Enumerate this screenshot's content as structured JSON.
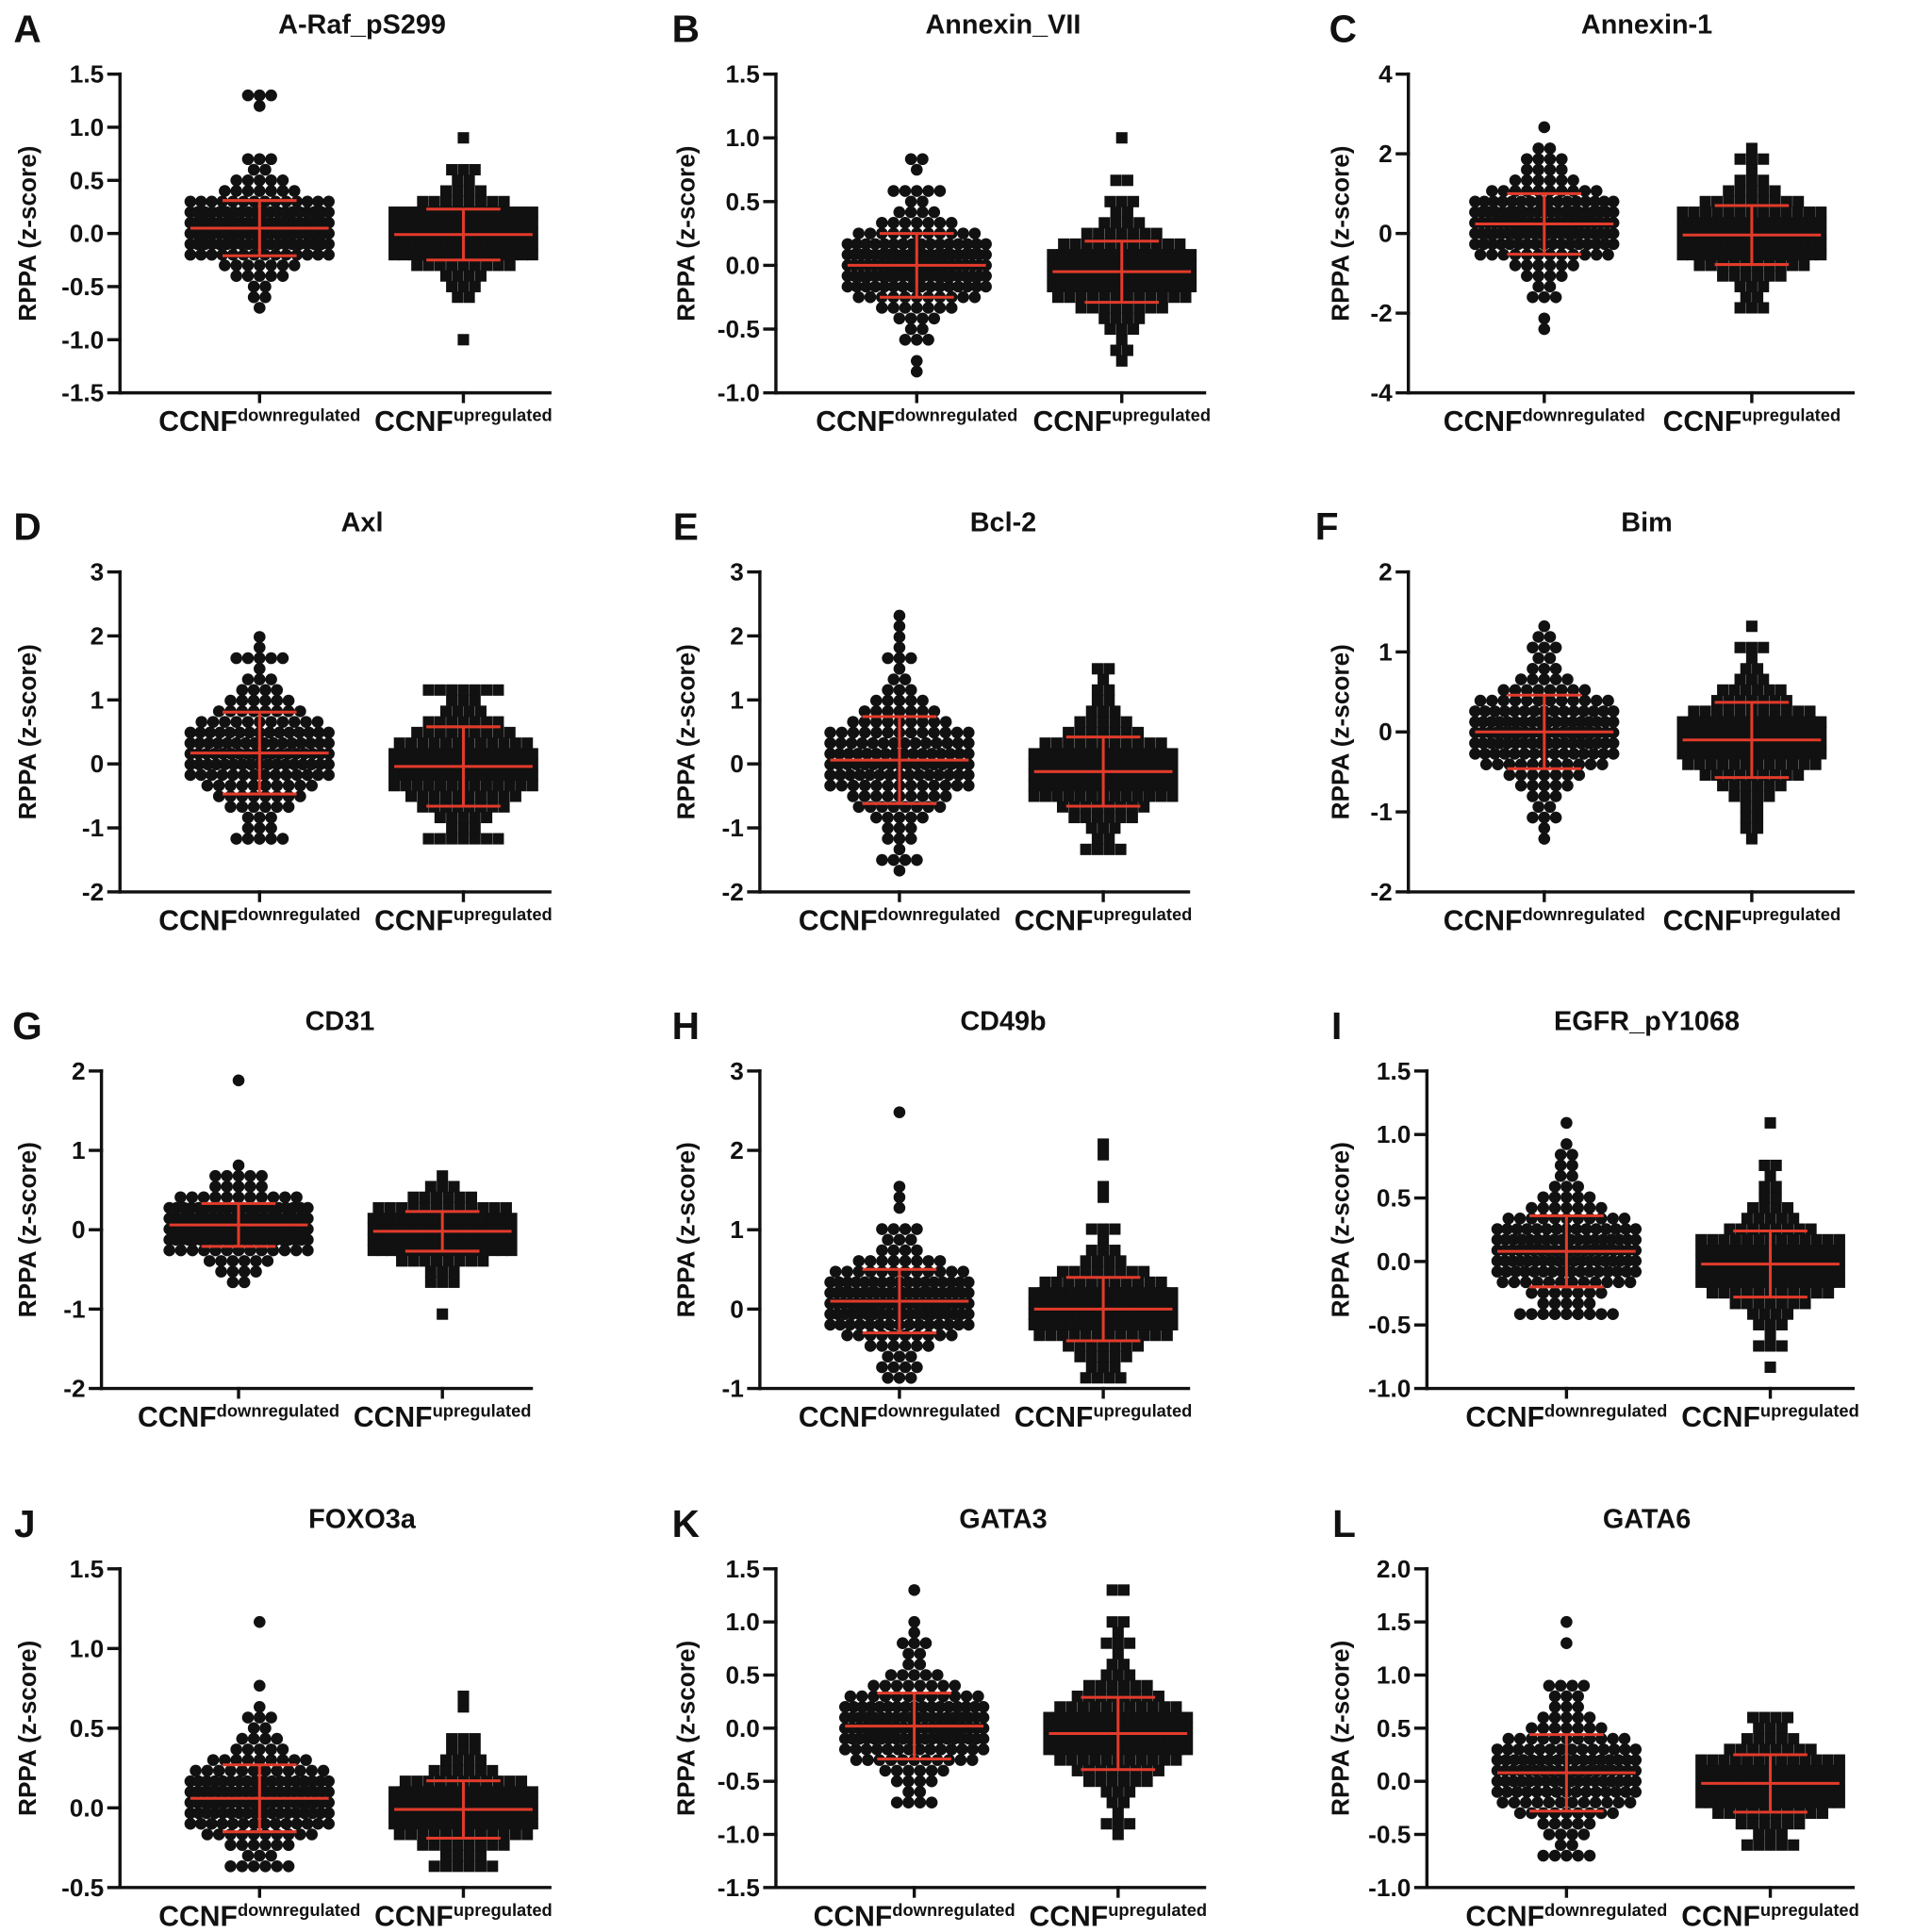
{
  "colors": {
    "points": "#111111",
    "summary": "#e23b2b"
  },
  "chart_data": [
    {
      "panel": "A",
      "type": "scatter",
      "title": "A-Raf_pS299",
      "ylabel": "RPPA (z-score)",
      "ylim": [
        -1.5,
        1.5
      ],
      "yticks": [
        -1.5,
        -1.0,
        -0.5,
        0.0,
        0.5,
        1.0,
        1.5
      ],
      "ytick_labels": [
        "-1.5",
        "-1.0",
        "-0.5",
        "0.0",
        "0.5",
        "1.0",
        "1.5"
      ],
      "categories": [
        {
          "base": "CCNF",
          "sup": "downregulated"
        },
        {
          "base": "CCNF",
          "sup": "upregulated"
        }
      ],
      "series": [
        {
          "marker": "circle",
          "mean": 0.05,
          "sd": 0.26,
          "range": [
            -0.73,
            1.33
          ],
          "outliers": [
            1.33,
            1.31,
            1.28,
            1.17,
            0.65,
            -0.73
          ]
        },
        {
          "marker": "square",
          "mean": -0.01,
          "sd": 0.24,
          "range": [
            -0.97,
            0.91
          ],
          "outliers": [
            0.91,
            0.6,
            -0.97
          ]
        }
      ]
    },
    {
      "panel": "B",
      "type": "scatter",
      "title": "Annexin_VII",
      "ylabel": "RPPA (z-score)",
      "ylim": [
        -1.0,
        1.5
      ],
      "yticks": [
        -1.0,
        -0.5,
        0.0,
        0.5,
        1.0,
        1.5
      ],
      "ytick_labels": [
        "-1.0",
        "-0.5",
        "0.0",
        "0.5",
        "1.0",
        "1.5"
      ],
      "categories": [
        {
          "base": "CCNF",
          "sup": "downregulated"
        },
        {
          "base": "CCNF",
          "sup": "upregulated"
        }
      ],
      "series": [
        {
          "marker": "circle",
          "mean": 0.0,
          "sd": 0.25,
          "range": [
            -0.82,
            0.83
          ],
          "outliers": [
            0.83,
            0.8,
            0.76,
            0.62,
            0.6,
            -0.82,
            -0.72
          ]
        },
        {
          "marker": "square",
          "mean": -0.05,
          "sd": 0.24,
          "range": [
            -0.72,
            1.0
          ],
          "outliers": [
            1.0,
            0.65,
            0.63,
            -0.72
          ]
        }
      ]
    },
    {
      "panel": "C",
      "type": "scatter",
      "title": "Annexin-1",
      "ylabel": "RPPA (z-score)",
      "ylim": [
        -4,
        4
      ],
      "yticks": [
        -4,
        -2,
        0,
        2,
        4
      ],
      "ytick_labels": [
        "-4",
        "-2",
        "0",
        "2",
        "4"
      ],
      "categories": [
        {
          "base": "CCNF",
          "sup": "downregulated"
        },
        {
          "base": "CCNF",
          "sup": "upregulated"
        }
      ],
      "series": [
        {
          "marker": "circle",
          "mean": 0.24,
          "sd": 0.76,
          "range": [
            -2.4,
            2.7
          ],
          "outliers": [
            2.7,
            1.95,
            1.9,
            -2.4,
            -2.2
          ]
        },
        {
          "marker": "square",
          "mean": -0.04,
          "sd": 0.74,
          "range": [
            -2.0,
            2.0
          ],
          "outliers": [
            2.0,
            1.9,
            -2.0
          ]
        }
      ]
    },
    {
      "panel": "D",
      "type": "scatter",
      "title": "Axl",
      "ylabel": "RPPA (z-score)",
      "ylim": [
        -2,
        3
      ],
      "yticks": [
        -2,
        -1,
        0,
        1,
        2,
        3
      ],
      "ytick_labels": [
        "-2",
        "-1",
        "0",
        "1",
        "2",
        "3"
      ],
      "categories": [
        {
          "base": "CCNF",
          "sup": "downregulated"
        },
        {
          "base": "CCNF",
          "sup": "upregulated"
        }
      ],
      "series": [
        {
          "marker": "circle",
          "mean": 0.17,
          "sd": 0.64,
          "range": [
            -1.25,
            1.97
          ],
          "outliers": [
            1.97,
            1.85,
            1.7,
            1.62,
            -1.25
          ]
        },
        {
          "marker": "square",
          "mean": -0.04,
          "sd": 0.62,
          "range": [
            -1.2,
            1.22
          ],
          "outliers": [
            1.22,
            1.2,
            -1.2
          ]
        }
      ]
    },
    {
      "panel": "E",
      "type": "scatter",
      "title": "Bcl-2",
      "ylabel": "RPPA (z-score)",
      "ylim": [
        -2,
        3
      ],
      "yticks": [
        -2,
        -1,
        0,
        1,
        2,
        3
      ],
      "ytick_labels": [
        "-2",
        "-1",
        "0",
        "1",
        "2",
        "3"
      ],
      "categories": [
        {
          "base": "CCNF",
          "sup": "downregulated"
        },
        {
          "base": "CCNF",
          "sup": "upregulated"
        }
      ],
      "series": [
        {
          "marker": "circle",
          "mean": 0.06,
          "sd": 0.68,
          "range": [
            -1.65,
            2.25
          ],
          "outliers": [
            2.25,
            2.2,
            2.0,
            1.9,
            -1.65,
            -1.5
          ]
        },
        {
          "marker": "square",
          "mean": -0.12,
          "sd": 0.54,
          "range": [
            -1.3,
            1.5
          ],
          "outliers": [
            1.5,
            1.45,
            1.3,
            -1.3
          ]
        }
      ]
    },
    {
      "panel": "F",
      "type": "scatter",
      "title": "Bim",
      "ylabel": "RPPA (z-score)",
      "ylim": [
        -2,
        2
      ],
      "yticks": [
        -2,
        -1,
        0,
        1,
        2
      ],
      "ytick_labels": [
        "-2",
        "-1",
        "0",
        "1",
        "2"
      ],
      "categories": [
        {
          "base": "CCNF",
          "sup": "downregulated"
        },
        {
          "base": "CCNF",
          "sup": "upregulated"
        }
      ],
      "series": [
        {
          "marker": "circle",
          "mean": 0.0,
          "sd": 0.46,
          "range": [
            -1.27,
            1.3
          ],
          "outliers": [
            1.3,
            1.18,
            1.15,
            -1.27,
            -1.15
          ]
        },
        {
          "marker": "square",
          "mean": -0.1,
          "sd": 0.47,
          "range": [
            -1.27,
            1.27
          ],
          "outliers": [
            1.27,
            1.12,
            -1.27
          ]
        }
      ]
    },
    {
      "panel": "G",
      "type": "scatter",
      "title": "CD31",
      "ylabel": "RPPA (z-score)",
      "ylim": [
        -2,
        2
      ],
      "yticks": [
        -2,
        -1,
        0,
        1,
        2
      ],
      "ytick_labels": [
        "-2",
        "-1",
        "0",
        "1",
        "2"
      ],
      "categories": [
        {
          "base": "CCNF",
          "sup": "downregulated"
        },
        {
          "base": "CCNF",
          "sup": "upregulated"
        }
      ],
      "series": [
        {
          "marker": "circle",
          "mean": 0.06,
          "sd": 0.27,
          "range": [
            -0.67,
            1.83
          ],
          "outliers": [
            1.83,
            0.78,
            0.73,
            -0.67,
            -0.65
          ]
        },
        {
          "marker": "square",
          "mean": -0.02,
          "sd": 0.25,
          "range": [
            -1.05,
            0.62
          ],
          "outliers": [
            0.62,
            -1.05,
            -0.65
          ]
        }
      ]
    },
    {
      "panel": "H",
      "type": "scatter",
      "title": "CD49b",
      "ylabel": "RPPA (z-score)",
      "ylim": [
        -1,
        3
      ],
      "yticks": [
        -1,
        0,
        1,
        2,
        3
      ],
      "ytick_labels": [
        "-1",
        "0",
        "1",
        "2",
        "3"
      ],
      "categories": [
        {
          "base": "CCNF",
          "sup": "downregulated"
        },
        {
          "base": "CCNF",
          "sup": "upregulated"
        }
      ],
      "series": [
        {
          "marker": "circle",
          "mean": 0.1,
          "sd": 0.4,
          "range": [
            -0.93,
            2.42
          ],
          "outliers": [
            2.42,
            1.57,
            1.37,
            1.32,
            1.0,
            -0.93,
            -0.78
          ]
        },
        {
          "marker": "square",
          "mean": 0.0,
          "sd": 0.4,
          "range": [
            -0.93,
            2.05
          ],
          "outliers": [
            2.05,
            1.93,
            1.6,
            1.4,
            1.0,
            -0.93
          ]
        }
      ]
    },
    {
      "panel": "I",
      "type": "scatter",
      "title": "EGFR_pY1068",
      "ylabel": "RPPA (z-score)",
      "ylim": [
        -1.0,
        1.5
      ],
      "yticks": [
        -1.0,
        -0.5,
        0.0,
        0.5,
        1.0,
        1.5
      ],
      "ytick_labels": [
        "-1.0",
        "-0.5",
        "0.0",
        "0.5",
        "1.0",
        "1.5"
      ],
      "categories": [
        {
          "base": "CCNF",
          "sup": "downregulated"
        },
        {
          "base": "CCNF",
          "sup": "upregulated"
        }
      ],
      "series": [
        {
          "marker": "circle",
          "mean": 0.08,
          "sd": 0.28,
          "range": [
            -0.42,
            1.12
          ],
          "outliers": [
            1.12,
            0.92,
            0.85,
            0.8,
            -0.42
          ]
        },
        {
          "marker": "square",
          "mean": -0.02,
          "sd": 0.26,
          "range": [
            -0.8,
            1.08
          ],
          "outliers": [
            1.08,
            0.78,
            0.75,
            0.65,
            -0.8,
            -0.7
          ]
        }
      ]
    },
    {
      "panel": "J",
      "type": "scatter",
      "title": "FOXO3a",
      "ylabel": "RPPA (z-score)",
      "ylim": [
        -0.5,
        1.5
      ],
      "yticks": [
        -0.5,
        0.0,
        0.5,
        1.0,
        1.5
      ],
      "ytick_labels": [
        "-0.5",
        "0.0",
        "0.5",
        "1.0",
        "1.5"
      ],
      "categories": [
        {
          "base": "CCNF",
          "sup": "downregulated"
        },
        {
          "base": "CCNF",
          "sup": "upregulated"
        }
      ],
      "series": [
        {
          "marker": "circle",
          "mean": 0.06,
          "sd": 0.21,
          "range": [
            -0.35,
            1.15
          ],
          "outliers": [
            1.15,
            0.75,
            0.6,
            0.58,
            -0.35
          ]
        },
        {
          "marker": "square",
          "mean": -0.01,
          "sd": 0.18,
          "range": [
            -0.4,
            0.67
          ],
          "outliers": [
            0.67,
            0.65,
            0.45,
            0.4,
            -0.4
          ]
        }
      ]
    },
    {
      "panel": "K",
      "type": "scatter",
      "title": "GATA3",
      "ylabel": "RPPA (z-score)",
      "ylim": [
        -1.5,
        1.5
      ],
      "yticks": [
        -1.5,
        -1.0,
        -0.5,
        0.0,
        0.5,
        1.0,
        1.5
      ],
      "ytick_labels": [
        "-1.5",
        "-1.0",
        "-0.5",
        "0.0",
        "0.5",
        "1.0",
        "1.5"
      ],
      "categories": [
        {
          "base": "CCNF",
          "sup": "downregulated"
        },
        {
          "base": "CCNF",
          "sup": "upregulated"
        }
      ],
      "series": [
        {
          "marker": "circle",
          "mean": 0.02,
          "sd": 0.31,
          "range": [
            -0.73,
            1.25
          ],
          "outliers": [
            1.25,
            1.03,
            0.87,
            0.83,
            -0.73
          ]
        },
        {
          "marker": "square",
          "mean": -0.05,
          "sd": 0.34,
          "range": [
            -1.05,
            1.3
          ],
          "outliers": [
            1.3,
            1.27,
            1.05,
            1.02,
            0.92,
            0.82,
            -1.05,
            -0.9
          ]
        }
      ]
    },
    {
      "panel": "L",
      "type": "scatter",
      "title": "GATA6",
      "ylabel": "RPPA (z-score)",
      "ylim": [
        -1.0,
        2.0
      ],
      "yticks": [
        -1.0,
        -0.5,
        0.0,
        0.5,
        1.0,
        1.5,
        2.0
      ],
      "ytick_labels": [
        "-1.0",
        "-0.5",
        "0.0",
        "0.5",
        "1.0",
        "1.5",
        "2.0"
      ],
      "categories": [
        {
          "base": "CCNF",
          "sup": "downregulated"
        },
        {
          "base": "CCNF",
          "sup": "upregulated"
        }
      ],
      "series": [
        {
          "marker": "circle",
          "mean": 0.08,
          "sd": 0.36,
          "range": [
            -0.65,
            1.53
          ],
          "outliers": [
            1.53,
            1.3,
            0.87,
            0.85,
            -0.65
          ]
        },
        {
          "marker": "square",
          "mean": -0.02,
          "sd": 0.27,
          "range": [
            -0.62,
            0.58
          ],
          "outliers": [
            0.58,
            0.55,
            -0.62
          ]
        }
      ]
    }
  ]
}
